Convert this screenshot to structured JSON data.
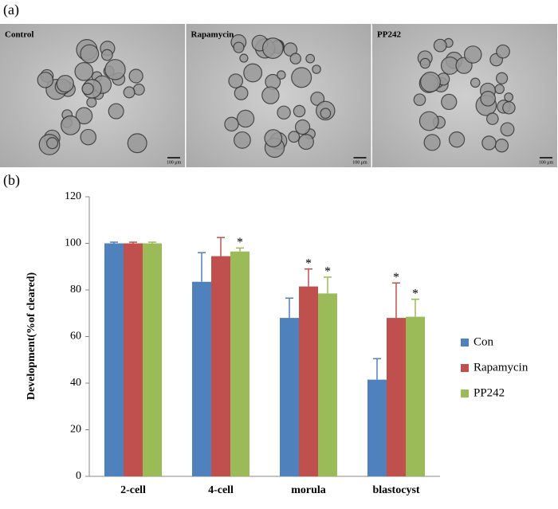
{
  "panel_a": {
    "label": "(a)",
    "images": [
      {
        "label": "Control",
        "scale": "100 μm"
      },
      {
        "label": "Rapamycin",
        "scale": "100 μm"
      },
      {
        "label": "PP242",
        "scale": "100 μm"
      }
    ]
  },
  "chart_data": {
    "type": "bar",
    "panel_label": "(b)",
    "ylabel": "Development(%of cleared)",
    "categories": [
      "2-cell",
      "4-cell",
      "morula",
      "blastocyst"
    ],
    "series": [
      {
        "name": "Con",
        "color": "#4f81bd",
        "values": [
          100,
          83.5,
          68,
          41.5
        ],
        "errors": [
          0.5,
          12.5,
          8.5,
          9
        ]
      },
      {
        "name": "Rapamycin",
        "color": "#c0504d",
        "values": [
          100,
          94.5,
          81.5,
          68
        ],
        "errors": [
          0.5,
          8,
          7.5,
          15
        ]
      },
      {
        "name": "PP242",
        "color": "#9bbb59",
        "values": [
          100,
          96.5,
          78.5,
          68.5
        ],
        "errors": [
          0.5,
          1.5,
          7,
          7.5
        ]
      }
    ],
    "annotations": [
      {
        "text": "*",
        "series": 2,
        "category": 1
      },
      {
        "text": "*",
        "series": 1,
        "category": 2
      },
      {
        "text": "*",
        "series": 2,
        "category": 2
      },
      {
        "text": "*",
        "series": 1,
        "category": 3
      },
      {
        "text": "*",
        "series": 2,
        "category": 3
      }
    ],
    "ylim": [
      0,
      120
    ],
    "yticks": [
      0,
      20,
      40,
      60,
      80,
      100,
      120
    ],
    "legend": "right"
  }
}
